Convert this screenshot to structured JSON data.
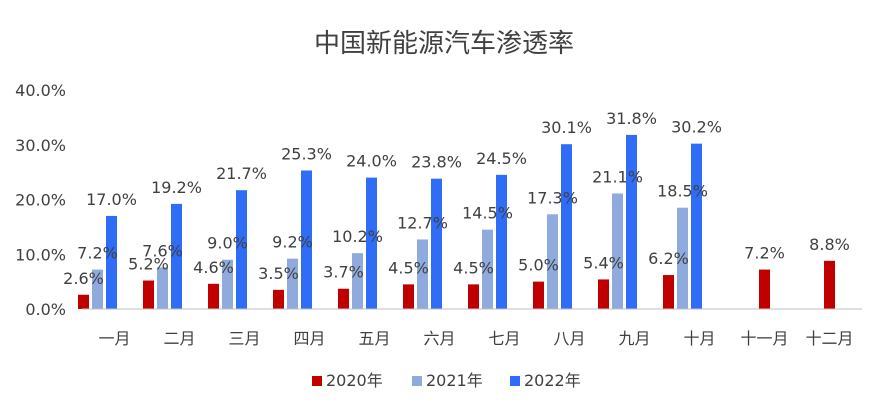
{
  "colors": {
    "series_2020": "#c00000",
    "series_2021": "#8faadc",
    "series_2022": "#2f6df6",
    "axis": "#bfbfbf",
    "text": "#404040"
  },
  "chart_data": {
    "type": "bar",
    "title": "中国新能源汽车渗透率",
    "xlabel": "",
    "ylabel": "",
    "ylim": [
      0,
      40
    ],
    "y_ticks": [
      "0.0%",
      "10.0%",
      "20.0%",
      "30.0%",
      "40.0%"
    ],
    "grid": false,
    "legend_position": "bottom",
    "categories": [
      "一月",
      "二月",
      "三月",
      "四月",
      "五月",
      "六月",
      "七月",
      "八月",
      "九月",
      "十月",
      "十一月",
      "十二月"
    ],
    "series": [
      {
        "name": "2020年",
        "values": [
          2.6,
          5.2,
          4.6,
          3.5,
          3.7,
          4.5,
          4.5,
          5.0,
          5.4,
          6.2,
          7.2,
          8.8
        ],
        "labels": [
          "2.6%",
          "5.2%",
          "4.6%",
          "3.5%",
          "3.7%",
          "4.5%",
          "4.5%",
          "5.0%",
          "5.4%",
          "6.2%",
          "7.2%",
          "8.8%"
        ]
      },
      {
        "name": "2021年",
        "values": [
          7.2,
          7.6,
          9.0,
          9.2,
          10.2,
          12.7,
          14.5,
          17.3,
          21.1,
          18.5,
          null,
          null
        ],
        "labels": [
          "7.2%",
          "7.6%",
          "9.0%",
          "9.2%",
          "10.2%",
          "12.7%",
          "14.5%",
          "17.3%",
          "21.1%",
          "18.5%",
          "",
          ""
        ]
      },
      {
        "name": "2022年",
        "values": [
          17.0,
          19.2,
          21.7,
          25.3,
          24.0,
          23.8,
          24.5,
          30.1,
          31.8,
          30.2,
          null,
          null
        ],
        "labels": [
          "17.0%",
          "19.2%",
          "21.7%",
          "25.3%",
          "24.0%",
          "23.8%",
          "24.5%",
          "30.1%",
          "31.8%",
          "30.2%",
          "",
          ""
        ]
      }
    ]
  }
}
